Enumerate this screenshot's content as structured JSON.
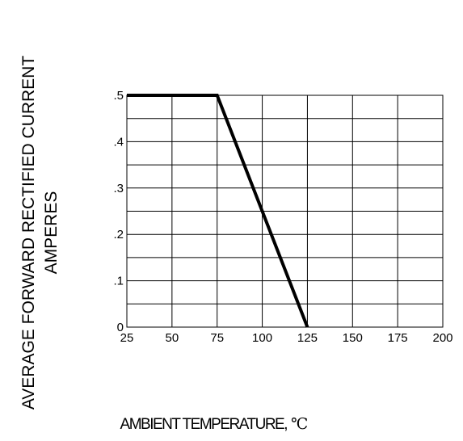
{
  "chart_data": {
    "type": "line",
    "title": "",
    "xlabel": "AMBIENT TEMPERATURE,",
    "xlabel_unit": "℃",
    "ylabel": [
      "AVERAGE FORWARD RECTIFIED CURRENT",
      "AMPERES"
    ],
    "x_tick_labels": [
      "25",
      "50",
      "75",
      "100",
      "125",
      "150",
      "175",
      "200"
    ],
    "y_tick_labels": [
      "0",
      ".1",
      ".2",
      ".3",
      ".4",
      ".5"
    ],
    "xlim": [
      25,
      200
    ],
    "ylim": [
      0,
      0.5
    ],
    "grid": true,
    "series": [
      {
        "x": [
          25,
          75,
          125
        ],
        "y": [
          0.5,
          0.5,
          0
        ]
      }
    ],
    "line_color": "#000000"
  }
}
